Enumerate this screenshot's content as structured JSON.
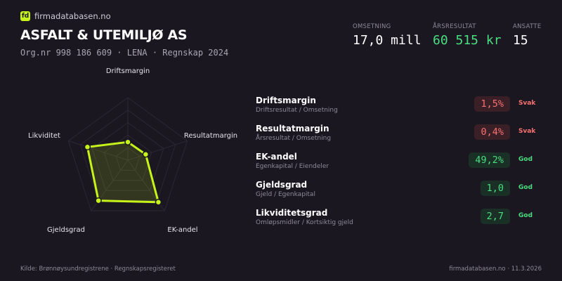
{
  "brand": {
    "logo_text": "fd",
    "name": "firmadatabasen.no",
    "accent": "#c6f41a"
  },
  "company": {
    "name": "ASFALT  & UTEMILJØ AS",
    "subtitle": "Org.nr 998 186 609  ·  LENA  ·  Regnskap 2024"
  },
  "kpis": [
    {
      "label": "OMSETNING",
      "value": "17,0 mill",
      "color": "#ffffff"
    },
    {
      "label": "ÅRSRESULTAT",
      "value": "60 515 kr",
      "color": "#4ade80"
    },
    {
      "label": "ANSATTE",
      "value": "15",
      "color": "#ffffff"
    }
  ],
  "chart_data": {
    "type": "radar",
    "axes": [
      "Driftsmargin",
      "Resultatmargin",
      "EK-andel",
      "Gjeldsgrad",
      "Likviditet"
    ],
    "values": [
      0.29,
      0.3,
      0.83,
      0.8,
      0.68
    ],
    "range": [
      0,
      1
    ],
    "rings": 5,
    "color": "#c6f41a"
  },
  "metrics": [
    {
      "name": "Driftsmargin",
      "desc": "Driftsresultat / Omsetning",
      "value": "1,5%",
      "status": "Svak",
      "tone": "bad"
    },
    {
      "name": "Resultatmargin",
      "desc": "Årsresultat / Omsetning",
      "value": "0,4%",
      "status": "Svak",
      "tone": "bad"
    },
    {
      "name": "EK-andel",
      "desc": "Egenkapital / Eiendeler",
      "value": "49,2%",
      "status": "God",
      "tone": "good"
    },
    {
      "name": "Gjeldsgrad",
      "desc": "Gjeld / Egenkapital",
      "value": "1,0",
      "status": "God",
      "tone": "good"
    },
    {
      "name": "Likviditetsgrad",
      "desc": "Omløpsmidler / Kortsiktig gjeld",
      "value": "2,7",
      "status": "God",
      "tone": "good"
    }
  ],
  "colors": {
    "bad": "#f87171",
    "bad_bg": "#3a1f26",
    "good": "#4ade80",
    "good_bg": "#1a2f26"
  },
  "footer": {
    "source": "Kilde: Brønnøysundregistrene · Regnskapsregisteret",
    "site": "firmadatabasen.no · 11.3.2026"
  }
}
